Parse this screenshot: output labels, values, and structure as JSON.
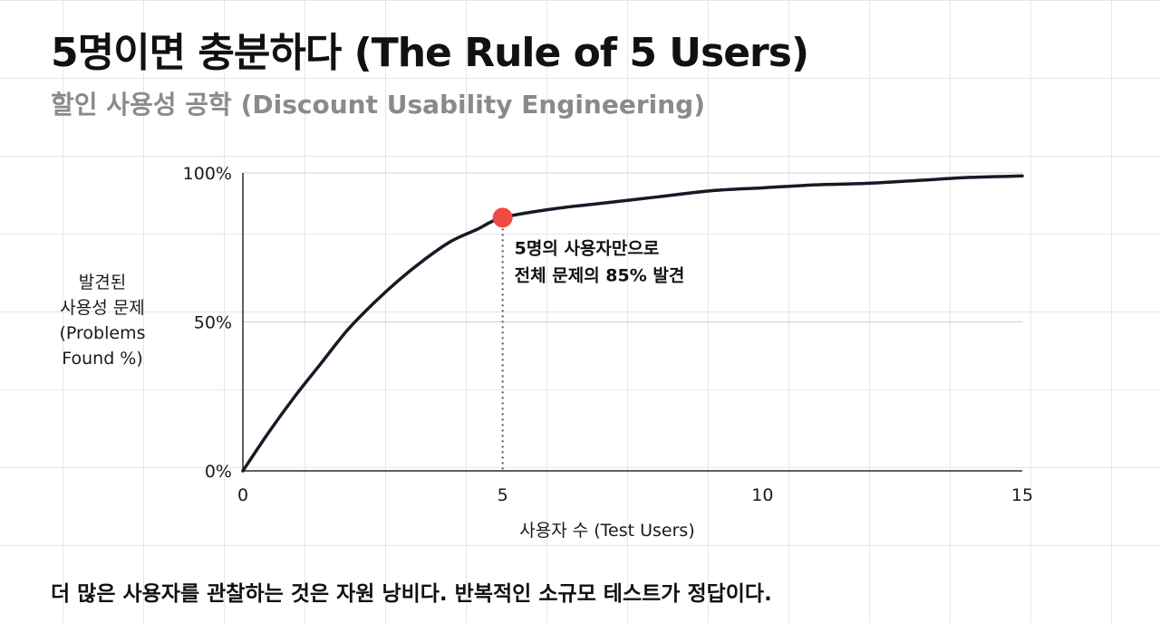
{
  "title": "5명이면 충분하다 (The Rule of 5 Users)",
  "subtitle": "할인 사용성 공학 (Discount Usability Engineering)",
  "footer": "더 많은 사용자를 관찰하는 것은 자원 낭비다. 반복적인 소규모 테스트가 정답이다.",
  "colors": {
    "curve": "#151a26",
    "marker": "#f04a45",
    "axis": "#2a2a2a",
    "gridline": "#cfcfcf"
  },
  "chart_data": {
    "type": "line",
    "title": "5명이면 충분하다 (The Rule of 5 Users)",
    "subtitle": "할인 사용성 공학 (Discount Usability Engineering)",
    "xlabel": "사용자 수 (Test Users)",
    "ylabel_lines": [
      "발견된",
      "사용성 문제",
      "(Problems",
      "Found %)"
    ],
    "xlim": [
      0,
      15
    ],
    "ylim": [
      0,
      100
    ],
    "x_ticks": [
      0,
      5,
      10,
      15
    ],
    "y_ticks": [
      {
        "value": 0,
        "label": "0%"
      },
      {
        "value": 50,
        "label": "50%"
      },
      {
        "value": 100,
        "label": "100%"
      }
    ],
    "grid": "horizontal",
    "series": [
      {
        "x": [
          0,
          0.5,
          1,
          1.5,
          2,
          2.5,
          3,
          3.5,
          4,
          4.5,
          5,
          6,
          7,
          8,
          9,
          10,
          11,
          12,
          13,
          14,
          15
        ],
        "y": [
          0,
          13,
          25,
          36,
          47,
          56,
          64,
          71,
          77,
          81,
          85,
          88,
          90,
          92,
          94,
          95,
          96,
          96.5,
          97.5,
          98.5,
          99
        ]
      }
    ],
    "highlight": {
      "x": 5,
      "y": 85
    },
    "annotation": [
      "5명의 사용자만으로",
      "전체 문제의 85% 발견"
    ]
  }
}
